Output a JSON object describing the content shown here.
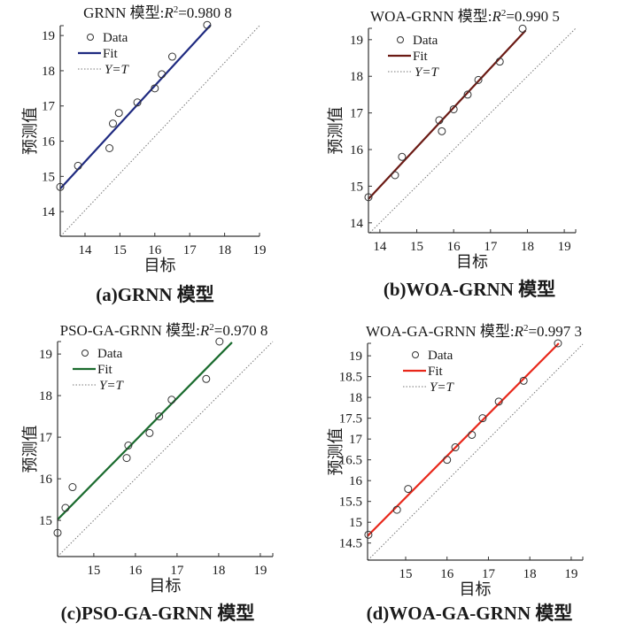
{
  "chart_data": [
    {
      "id": "a",
      "type": "scatter",
      "title_prefix": "GRNN 模型:",
      "title_r": "R",
      "title_sup": "2",
      "title_value": "=0.980 8",
      "xlabel": "目标",
      "ylabel": "预测值",
      "caption": "(a)GRNN 模型",
      "xlim": [
        13.29,
        19.0
      ],
      "ylim": [
        13.3,
        19.28
      ],
      "xticks": [
        14,
        15,
        16,
        17,
        18,
        19
      ],
      "xtick_labels": [
        "14",
        "15",
        "16",
        "17",
        "18",
        "19"
      ],
      "yticks": [
        14,
        15,
        16,
        17,
        18,
        19
      ],
      "ytick_labels": [
        "14",
        "15",
        "16",
        "17",
        "18",
        "19"
      ],
      "fit_color": "#1f2a80",
      "legend": {
        "position": "top-left",
        "entries": [
          "Data",
          "Fit",
          "Y=T"
        ]
      },
      "points": {
        "x": [
          13.29,
          13.8,
          14.7,
          14.8,
          14.97,
          15.5,
          16.0,
          16.2,
          16.5,
          17.5
        ],
        "y": [
          14.7,
          15.3,
          15.8,
          16.5,
          16.8,
          17.1,
          17.5,
          17.9,
          18.4,
          19.3
        ]
      },
      "fit": {
        "x": [
          13.29,
          17.6
        ],
        "y": [
          14.65,
          19.3
        ]
      },
      "identity": {
        "x": [
          13.3,
          19.0
        ],
        "y": [
          13.3,
          19.28
        ]
      }
    },
    {
      "id": "b",
      "type": "scatter",
      "title_prefix": "WOA-GRNN 模型:",
      "title_r": "R",
      "title_sup": "2",
      "title_value": "=0.990 5",
      "xlabel": "目标",
      "ylabel": "预测值",
      "caption": "(b)WOA-GRNN 模型",
      "xlim": [
        13.69,
        19.31
      ],
      "ylim": [
        13.73,
        19.31
      ],
      "xticks": [
        14,
        15,
        16,
        17,
        18,
        19
      ],
      "xtick_labels": [
        "14",
        "15",
        "16",
        "17",
        "18",
        "19"
      ],
      "yticks": [
        14,
        15,
        16,
        17,
        18,
        19
      ],
      "ytick_labels": [
        "14",
        "15",
        "16",
        "17",
        "18",
        "19"
      ],
      "fit_color": "#6b1a14",
      "legend": {
        "position": "top-left",
        "entries": [
          "Data",
          "Fit",
          "Y=T"
        ]
      },
      "points": {
        "x": [
          13.69,
          14.41,
          14.6,
          15.61,
          15.68,
          16.0,
          16.38,
          16.67,
          17.25,
          17.87
        ],
        "y": [
          14.7,
          15.3,
          15.8,
          16.8,
          16.5,
          17.1,
          17.5,
          17.9,
          18.4,
          19.3
        ]
      },
      "fit": {
        "x": [
          13.69,
          17.95
        ],
        "y": [
          14.65,
          19.25
        ]
      },
      "identity": {
        "x": [
          13.73,
          19.31
        ],
        "y": [
          13.73,
          19.31
        ]
      }
    },
    {
      "id": "c",
      "type": "scatter",
      "title_prefix": "PSO-GA-GRNN 模型:",
      "title_r": "R",
      "title_sup": "2",
      "title_value": "=0.970 8",
      "xlabel": "目标",
      "ylabel": "预测值",
      "caption": "(c)PSO-GA-GRNN 模型",
      "xlim": [
        14.13,
        19.3
      ],
      "ylim": [
        14.13,
        19.3
      ],
      "xticks": [
        15,
        16,
        17,
        18,
        19
      ],
      "xtick_labels": [
        "15",
        "16",
        "17",
        "18",
        "19"
      ],
      "yticks": [
        15,
        16,
        17,
        18,
        19
      ],
      "ytick_labels": [
        "15",
        "16",
        "17",
        "18",
        "19"
      ],
      "fit_color": "#1a6b2e",
      "legend": {
        "position": "top-left",
        "entries": [
          "Data",
          "Fit",
          "Y=T"
        ]
      },
      "points": {
        "x": [
          14.13,
          14.32,
          14.49,
          15.79,
          15.83,
          16.34,
          16.57,
          16.87,
          17.7,
          18.02
        ],
        "y": [
          14.7,
          15.3,
          15.8,
          16.5,
          16.8,
          17.1,
          17.5,
          17.9,
          18.4,
          19.3
        ]
      },
      "fit": {
        "x": [
          14.13,
          18.32
        ],
        "y": [
          15.02,
          19.28
        ]
      },
      "identity": {
        "x": [
          14.13,
          19.3
        ],
        "y": [
          14.13,
          19.3
        ]
      }
    },
    {
      "id": "d",
      "type": "scatter",
      "title_prefix": "WOA-GA-GRNN 模型:",
      "title_r": "R",
      "title_sup": "2",
      "title_value": "=0.997 3",
      "xlabel": "目标",
      "ylabel": "预测值",
      "caption": "(d)WOA-GA-GRNN 模型",
      "xlim": [
        14.08,
        19.28
      ],
      "ylim": [
        14.09,
        19.3
      ],
      "xticks": [
        15,
        16,
        17,
        18,
        19
      ],
      "xtick_labels": [
        "15",
        "16",
        "17",
        "18",
        "19"
      ],
      "yticks": [
        14.5,
        15,
        15.5,
        16,
        16.5,
        17,
        17.5,
        18,
        18.5,
        19
      ],
      "ytick_labels": [
        "14.5",
        "15",
        "15.5",
        "16",
        "16.5",
        "17",
        "17.5",
        "18",
        "18.5",
        "19"
      ],
      "fit_color": "#e8271a",
      "legend": {
        "position": "top-left",
        "entries": [
          "Data",
          "Fit",
          "Y=T"
        ]
      },
      "points": {
        "x": [
          14.1,
          14.79,
          15.06,
          16.0,
          16.2,
          16.6,
          16.86,
          17.25,
          17.85,
          18.68
        ],
        "y": [
          14.7,
          15.3,
          15.8,
          16.5,
          16.8,
          17.1,
          17.5,
          17.9,
          18.4,
          19.3
        ]
      },
      "fit": {
        "x": [
          14.08,
          18.7
        ],
        "y": [
          14.67,
          19.3
        ]
      },
      "identity": {
        "x": [
          14.09,
          19.28
        ],
        "y": [
          14.09,
          19.28
        ]
      }
    }
  ]
}
